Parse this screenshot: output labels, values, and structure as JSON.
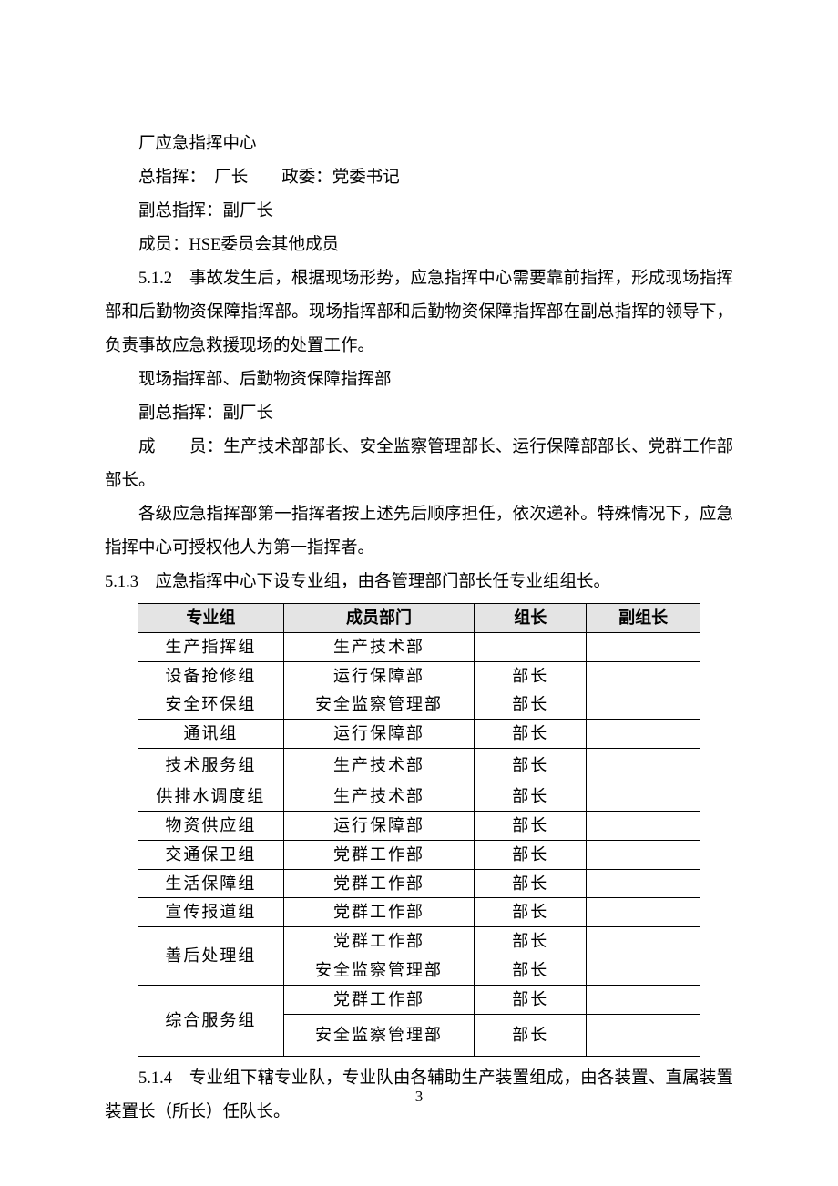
{
  "paragraphs": {
    "p1": "厂应急指挥中心",
    "p2": "总指挥：　厂长　　政委：党委书记",
    "p3": "副总指挥：副厂长",
    "p4": "成员：HSE委员会其他成员",
    "p5": "5.1.2　事故发生后，根据现场形势，应急指挥中心需要靠前指挥，形成现场指挥部和后勤物资保障指挥部。现场指挥部和后勤物资保障指挥部在副总指挥的领导下，负责事故应急救援现场的处置工作。",
    "p6": "现场指挥部、后勤物资保障指挥部",
    "p7": "副总指挥：副厂长",
    "p8": "成　　员：生产技术部部长、安全监察管理部长、运行保障部部长、党群工作部部长。",
    "p9": "各级应急指挥部第一指挥者按上述先后顺序担任，依次递补。特殊情况下，应急指挥中心可授权他人为第一指挥者。",
    "p10": "5.1.3　应急指挥中心下设专业组，由各管理部门部长任专业组组长。",
    "p11": "5.1.4　专业组下辖专业队，专业队由各辅助生产装置组成，由各装置、直属装置装置长（所长）任队长。"
  },
  "table": {
    "headers": [
      "专业组",
      "成员部门",
      "组长",
      "副组长"
    ],
    "header_bg": "#e4e4e4",
    "border_color": "#000000",
    "rows": [
      {
        "group": "生产指挥组",
        "dept": "生产技术部",
        "leader": "",
        "deputy": "",
        "rowspan": 1
      },
      {
        "group": "设备抢修组",
        "dept": "运行保障部",
        "leader": "部长",
        "deputy": "",
        "rowspan": 1
      },
      {
        "group": "安全环保组",
        "dept": "安全监察管理部",
        "leader": "部长",
        "deputy": "",
        "rowspan": 1
      },
      {
        "group": "通讯组",
        "dept": "运行保障部",
        "leader": "部长",
        "deputy": "",
        "rowspan": 1
      },
      {
        "group": "技术服务组",
        "dept": "生产技术部",
        "leader": "部长",
        "deputy": "",
        "rowspan": 1,
        "tall": true
      },
      {
        "group": "供排水调度组",
        "dept": "生产技术部",
        "leader": "部长",
        "deputy": "",
        "rowspan": 1
      },
      {
        "group": "物资供应组",
        "dept": "运行保障部",
        "leader": "部长",
        "deputy": "",
        "rowspan": 1
      },
      {
        "group": "交通保卫组",
        "dept": "党群工作部",
        "leader": "部长",
        "deputy": "",
        "rowspan": 1
      },
      {
        "group": "生活保障组",
        "dept": "党群工作部",
        "leader": "部长",
        "deputy": "",
        "rowspan": 1
      },
      {
        "group": "宣传报道组",
        "dept": "党群工作部",
        "leader": "部长",
        "deputy": "",
        "rowspan": 1
      },
      {
        "group": "善后处理组",
        "dept": "党群工作部",
        "leader": "部长",
        "deputy": "",
        "rowspan": 2
      },
      {
        "group": "",
        "dept": "安全监察管理部",
        "leader": "部长",
        "deputy": "",
        "rowspan": 0
      },
      {
        "group": "综合服务组",
        "dept": "党群工作部",
        "leader": "部长",
        "deputy": "",
        "rowspan": 2
      },
      {
        "group": "",
        "dept": "安全监察管理部",
        "leader": "部长",
        "deputy": "",
        "rowspan": 0,
        "taller": true
      }
    ]
  },
  "page_number": "3"
}
